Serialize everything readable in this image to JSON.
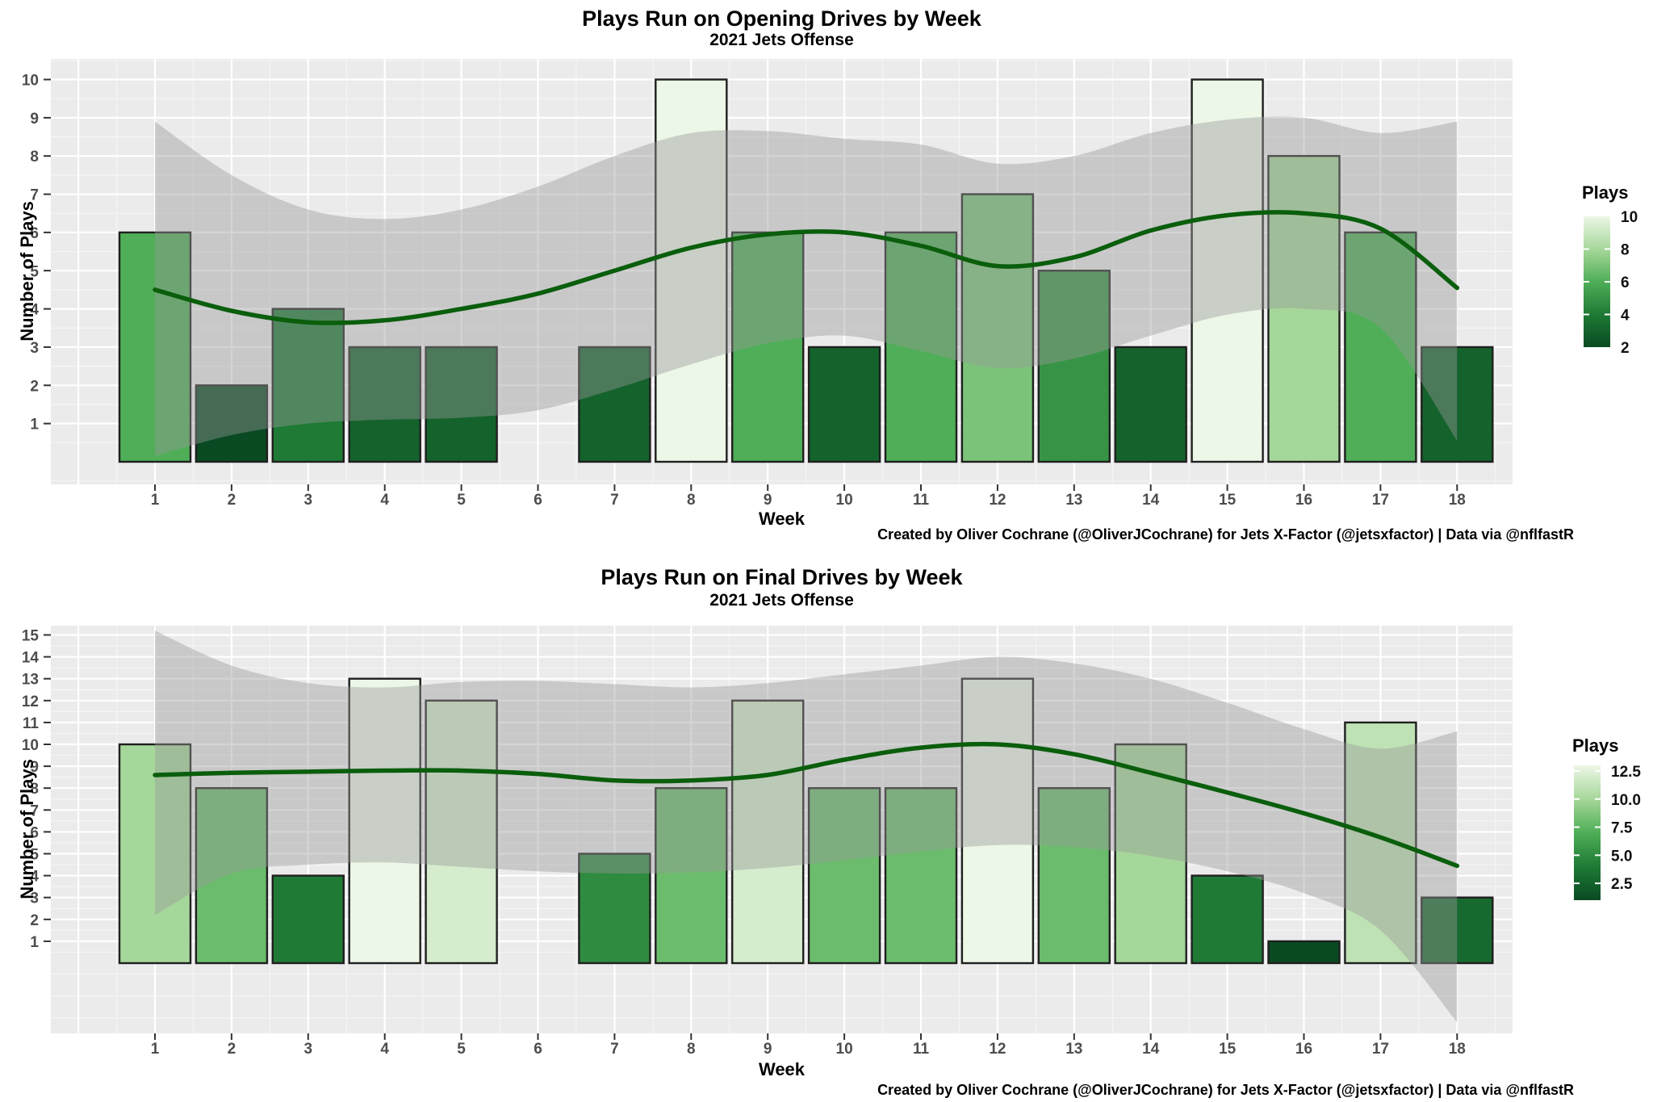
{
  "figure": {
    "background": "#ffffff",
    "panel_color": "#ebebeb",
    "grid_major_color": "#ffffff",
    "grid_minor_color": "#f5f5f5",
    "bar_outline_color": "#1f1f1f",
    "smooth_line_color": "#0a5e0c",
    "ribbon_color": "#999999",
    "ribbon_opacity": 0.42,
    "axis_text_color": "#4d4d4d",
    "gradient_stops_low_to_high": [
      "#0a4a23",
      "#1e7a35",
      "#4fae57",
      "#a6d79a",
      "#edf7e7"
    ]
  },
  "chart_data": [
    {
      "type": "bar",
      "title": "Plays Run on Opening Drives by Week",
      "subtitle": "2021 Jets Offense",
      "xlabel": "Week",
      "ylabel": "Number of Plays",
      "caption": "Created by Oliver Cochrane (@OliverJCochrane) for Jets X-Factor (@jetsxfactor) | Data via @nflfastR",
      "legend": {
        "title": "Plays",
        "position": "right",
        "domain": [
          2,
          10
        ],
        "tick_values": [
          10,
          8,
          6,
          4,
          2
        ],
        "tick_labels": [
          "10",
          "8",
          "6",
          "4",
          "2"
        ]
      },
      "grid": true,
      "categories": [
        1,
        2,
        3,
        4,
        5,
        7,
        8,
        9,
        10,
        11,
        12,
        13,
        14,
        15,
        16,
        17,
        18
      ],
      "values": [
        6,
        2,
        4,
        3,
        3,
        3,
        10,
        6,
        3,
        6,
        7,
        5,
        3,
        10,
        8,
        6,
        3
      ],
      "x_ticks": [
        1,
        2,
        3,
        4,
        5,
        6,
        7,
        8,
        9,
        10,
        11,
        12,
        13,
        14,
        15,
        16,
        17,
        18
      ],
      "y_ticks": [
        1,
        2,
        3,
        4,
        5,
        6,
        7,
        8,
        9,
        10
      ],
      "ylim": [
        -0.6,
        10.55
      ],
      "xlim": [
        0,
        19
      ],
      "smooth": {
        "x": [
          1,
          2,
          3,
          4,
          5,
          6,
          7,
          8,
          9,
          10,
          11,
          12,
          13,
          14,
          15,
          16,
          17,
          18
        ],
        "line": [
          4.5,
          3.95,
          3.65,
          3.7,
          4.0,
          4.4,
          5.0,
          5.6,
          5.95,
          6.0,
          5.65,
          5.12,
          5.35,
          6.05,
          6.45,
          6.5,
          6.1,
          4.55
        ],
        "upper": [
          8.9,
          7.5,
          6.6,
          6.35,
          6.6,
          7.2,
          8.0,
          8.6,
          8.65,
          8.45,
          8.3,
          7.8,
          8.0,
          8.6,
          8.95,
          9.0,
          8.6,
          8.9
        ],
        "lower": [
          0.15,
          0.7,
          1.0,
          1.1,
          1.15,
          1.35,
          1.9,
          2.55,
          3.1,
          3.3,
          2.9,
          2.45,
          2.7,
          3.3,
          3.85,
          4.0,
          3.5,
          0.55
        ]
      }
    },
    {
      "type": "bar",
      "title": "Plays Run on Final Drives by Week",
      "subtitle": "2021 Jets Offense",
      "xlabel": "Week",
      "ylabel": "Number of Plays",
      "caption": "Created by Oliver Cochrane (@OliverJCochrane) for Jets X-Factor (@jetsxfactor) | Data via @nflfastR",
      "legend": {
        "title": "Plays",
        "position": "right",
        "domain": [
          1,
          13
        ],
        "tick_values": [
          12.5,
          10.0,
          7.5,
          5.0,
          2.5
        ],
        "tick_labels": [
          "12.5",
          "10.0",
          "7.5",
          "5.0",
          "2.5"
        ]
      },
      "grid": true,
      "categories": [
        1,
        2,
        3,
        4,
        5,
        7,
        8,
        9,
        10,
        11,
        12,
        13,
        14,
        15,
        16,
        17,
        18
      ],
      "values": [
        10,
        8,
        4,
        13,
        12,
        5,
        8,
        12,
        8,
        8,
        13,
        8,
        10,
        4,
        1,
        11,
        3
      ],
      "x_ticks": [
        1,
        2,
        3,
        4,
        5,
        6,
        7,
        8,
        9,
        10,
        11,
        12,
        13,
        14,
        15,
        16,
        17,
        18
      ],
      "y_ticks": [
        1,
        2,
        3,
        4,
        5,
        6,
        7,
        8,
        9,
        10,
        11,
        12,
        13,
        14,
        15
      ],
      "ylim": [
        -3.2,
        15.4
      ],
      "xlim": [
        0,
        19
      ],
      "smooth": {
        "x": [
          1,
          2,
          3,
          4,
          5,
          6,
          7,
          8,
          9,
          10,
          11,
          12,
          13,
          14,
          15,
          16,
          17,
          18
        ],
        "line": [
          8.6,
          8.7,
          8.75,
          8.8,
          8.8,
          8.65,
          8.35,
          8.35,
          8.6,
          9.3,
          9.85,
          10.0,
          9.55,
          8.7,
          7.8,
          6.85,
          5.75,
          4.45
        ],
        "upper": [
          15.2,
          13.6,
          12.8,
          12.6,
          12.85,
          12.9,
          12.75,
          12.6,
          12.8,
          13.2,
          13.6,
          14.0,
          13.7,
          13.0,
          11.9,
          10.7,
          9.8,
          10.6
        ],
        "lower": [
          2.2,
          4.1,
          4.5,
          4.6,
          4.4,
          4.2,
          4.1,
          4.15,
          4.35,
          4.7,
          5.1,
          5.4,
          5.3,
          4.9,
          4.2,
          3.2,
          1.5,
          -2.7
        ]
      }
    }
  ]
}
